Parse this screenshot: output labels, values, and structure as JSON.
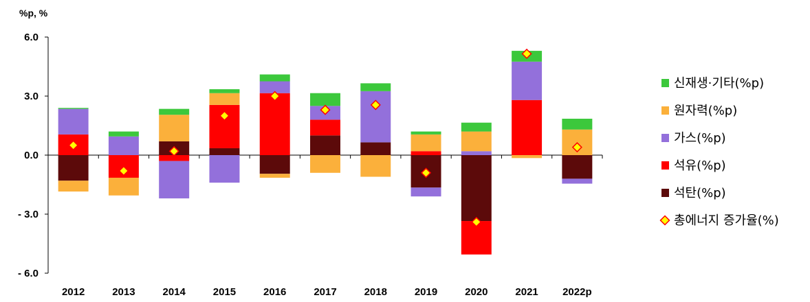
{
  "chart_data": {
    "type": "bar",
    "stacked": true,
    "y_unit_label": "%p, %",
    "categories": [
      "2012",
      "2013",
      "2014",
      "2015",
      "2016",
      "2017",
      "2018",
      "2019",
      "2020",
      "2021",
      "2022p"
    ],
    "ylim": [
      -6.0,
      6.0
    ],
    "yticks": [
      6.0,
      3.0,
      0.0,
      -3.0,
      -6.0
    ],
    "ytick_labels": [
      "6.0",
      "3.0",
      "0.0",
      "- 3.0",
      "- 6.0"
    ],
    "grid": false,
    "legend_position": "right",
    "series": [
      {
        "name": "석탄(%p)",
        "color": "#5c0a0a",
        "values": [
          -1.3,
          0.0,
          0.7,
          0.35,
          -0.95,
          1.0,
          0.65,
          -1.65,
          -3.35,
          0.0,
          -1.2
        ]
      },
      {
        "name": "석유(%p)",
        "color": "#ff0000",
        "values": [
          1.05,
          -1.15,
          -0.3,
          2.2,
          3.15,
          0.8,
          0.0,
          0.2,
          -1.7,
          2.8,
          0.0
        ]
      },
      {
        "name": "가스(%p)",
        "color": "#9370db",
        "values": [
          1.3,
          0.95,
          -1.9,
          -1.4,
          0.6,
          0.7,
          2.6,
          -0.45,
          0.2,
          1.95,
          -0.25
        ]
      },
      {
        "name": "원자력(%p)",
        "color": "#fbb03b",
        "values": [
          -0.55,
          -0.9,
          1.35,
          0.6,
          -0.2,
          -0.9,
          -1.1,
          0.85,
          1.0,
          -0.15,
          1.3
        ]
      },
      {
        "name": "신재생·기타(%p)",
        "color": "#3cc83c",
        "values": [
          0.05,
          0.25,
          0.3,
          0.2,
          0.35,
          0.65,
          0.4,
          0.15,
          0.45,
          0.55,
          0.55
        ]
      }
    ],
    "total_series": {
      "name": "총에너지 증가율(%)",
      "values": [
        0.5,
        -0.8,
        0.2,
        2.0,
        3.0,
        2.3,
        2.55,
        -0.9,
        -3.4,
        5.15,
        0.4
      ]
    },
    "legend_order": [
      "신재생·기타(%p)",
      "원자력(%p)",
      "가스(%p)",
      "석유(%p)",
      "석탄(%p)",
      "총에너지 증가율(%)"
    ]
  }
}
